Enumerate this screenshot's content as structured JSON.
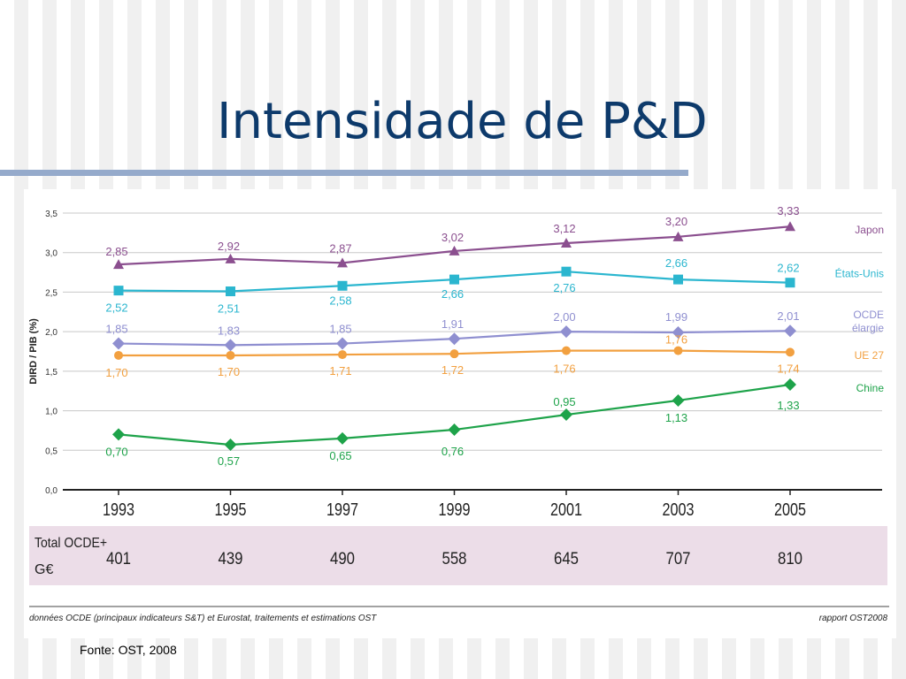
{
  "slide": {
    "title": "Intensidade de P&D",
    "source": "Fonte: OST, 2008"
  },
  "figure": {
    "footer_left": "données OCDE (principaux indicateurs S&T) et Eurostat, traitements et estimations OST",
    "footer_right": "rapport OST2008"
  },
  "chart_data": {
    "type": "line",
    "ylabel": "DIRD / PIB (%)",
    "ylim": [
      0,
      3.5
    ],
    "yticks": [
      "0,0",
      "0,5",
      "1,0",
      "1,5",
      "2,0",
      "2,5",
      "3,0",
      "3,5"
    ],
    "x": [
      "1993",
      "1995",
      "1997",
      "1999",
      "2001",
      "2003",
      "2005"
    ],
    "grid": true,
    "legend": "right",
    "series": [
      {
        "name": "Japon",
        "color": "#8b4f8f",
        "marker": "triangle",
        "values": [
          2.85,
          2.92,
          2.87,
          3.02,
          3.12,
          3.2,
          3.33
        ],
        "labels": [
          "2,85",
          "2,92",
          "2,87",
          "3,02",
          "3,12",
          "3,20",
          "3,33"
        ]
      },
      {
        "name": "États-Unis",
        "color": "#2bb6cf",
        "marker": "square",
        "values": [
          2.52,
          2.51,
          2.58,
          2.66,
          2.76,
          2.66,
          2.62
        ],
        "labels": [
          "2,52",
          "2,51",
          "2,58",
          "2,66",
          "2,76",
          "2,66",
          "2,62"
        ]
      },
      {
        "name": "OCDE élargie",
        "color": "#8f8fd0",
        "marker": "diamond",
        "values": [
          1.85,
          1.83,
          1.85,
          1.91,
          2.0,
          1.99,
          2.01
        ],
        "labels": [
          "1,85",
          "1,83",
          "1,85",
          "1,91",
          "2,00",
          "1,99",
          "2,01"
        ]
      },
      {
        "name": "UE 27",
        "color": "#f2a040",
        "marker": "circle",
        "values": [
          1.7,
          1.7,
          1.71,
          1.72,
          1.76,
          1.76,
          1.74
        ],
        "labels": [
          "1,70",
          "1,70",
          "1,71",
          "1,72",
          "1,76",
          "1,76",
          "1,74"
        ]
      },
      {
        "name": "Chine",
        "color": "#1ea34a",
        "marker": "diamond",
        "values": [
          0.7,
          0.57,
          0.65,
          0.76,
          0.95,
          1.13,
          1.33
        ],
        "labels": [
          "0,70",
          "0,57",
          "0,65",
          "0,76",
          "0,95",
          "1,13",
          "1,33"
        ]
      }
    ],
    "totals": {
      "label_line1": "Total OCDE+",
      "label_line2": "G€",
      "values": [
        "401",
        "439",
        "490",
        "558",
        "645",
        "707",
        "810"
      ]
    }
  }
}
